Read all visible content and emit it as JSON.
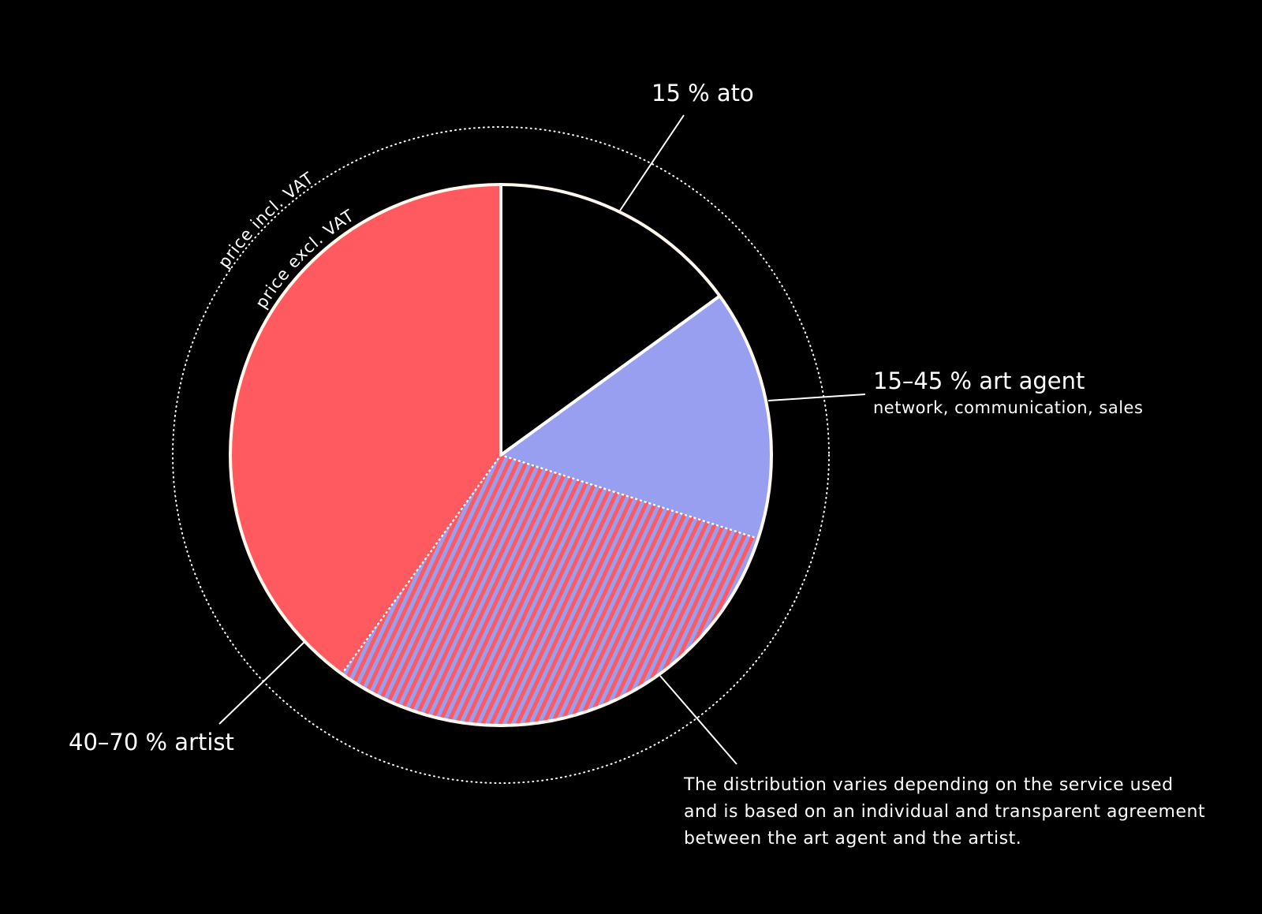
{
  "chart_data": {
    "type": "pie",
    "ring_labels": [
      "price incl. VAT",
      "price excl. VAT"
    ],
    "slices": [
      {
        "label": "15 % ato",
        "value": 15,
        "color": "#000000"
      },
      {
        "label": "15–45 % art agent",
        "sublabel": "network, communication, sales",
        "value": 15,
        "color": "#989ff0"
      },
      {
        "note": [
          "The distribution varies depending on the service used",
          "and is based on an individual and transparent agreement",
          "between the art agent and the artist."
        ],
        "value": 30,
        "colors": [
          "#ff5a60",
          "#989ff0"
        ]
      },
      {
        "label": "40–70 % artist",
        "value": 40,
        "color": "#ff5a60"
      }
    ]
  }
}
